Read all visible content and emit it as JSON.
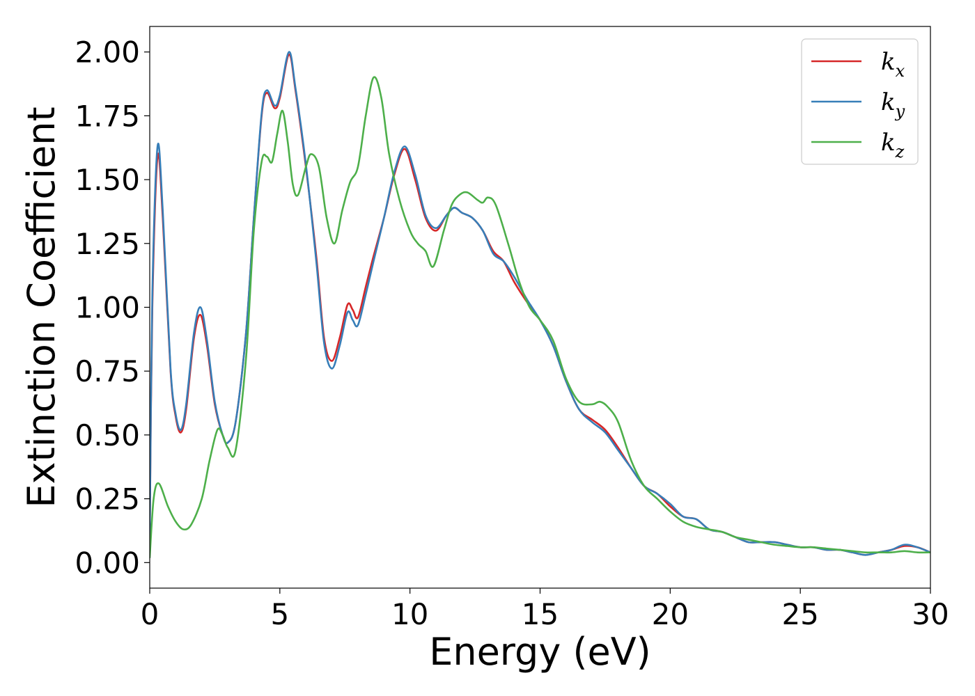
{
  "chart_data": {
    "type": "line",
    "title": "",
    "xlabel": "Energy (eV)",
    "ylabel": "Extinction Coefficient",
    "xlim": [
      0,
      30
    ],
    "ylim": [
      -0.1,
      2.1
    ],
    "xticks": [
      0,
      5,
      10,
      15,
      20,
      25,
      30
    ],
    "xtick_labels": [
      "0",
      "5",
      "10",
      "15",
      "20",
      "25",
      "30"
    ],
    "yticks": [
      0,
      0.25,
      0.5,
      0.75,
      1.0,
      1.25,
      1.5,
      1.75,
      2.0
    ],
    "ytick_labels": [
      "0.00",
      "0.25",
      "0.50",
      "0.75",
      "1.00",
      "1.25",
      "1.50",
      "1.75",
      "2.00"
    ],
    "grid": false,
    "legend_position": "top-right",
    "series": [
      {
        "name": "k",
        "subscript": "x",
        "color": "#d62728",
        "points": [
          [
            0,
            0.1
          ],
          [
            0.1,
            1.0
          ],
          [
            0.3,
            1.59
          ],
          [
            0.5,
            1.35
          ],
          [
            0.8,
            0.75
          ],
          [
            1.0,
            0.57
          ],
          [
            1.2,
            0.51
          ],
          [
            1.4,
            0.6
          ],
          [
            1.7,
            0.88
          ],
          [
            1.95,
            0.97
          ],
          [
            2.2,
            0.85
          ],
          [
            2.5,
            0.62
          ],
          [
            2.8,
            0.5
          ],
          [
            3.0,
            0.47
          ],
          [
            3.3,
            0.55
          ],
          [
            3.7,
            0.9
          ],
          [
            4.0,
            1.35
          ],
          [
            4.3,
            1.75
          ],
          [
            4.5,
            1.84
          ],
          [
            4.8,
            1.78
          ],
          [
            5.0,
            1.82
          ],
          [
            5.35,
            1.99
          ],
          [
            5.6,
            1.85
          ],
          [
            6.0,
            1.55
          ],
          [
            6.4,
            1.2
          ],
          [
            6.7,
            0.88
          ],
          [
            7.0,
            0.79
          ],
          [
            7.3,
            0.88
          ],
          [
            7.6,
            1.01
          ],
          [
            7.8,
            0.99
          ],
          [
            8.0,
            0.96
          ],
          [
            8.3,
            1.08
          ],
          [
            8.6,
            1.2
          ],
          [
            9.0,
            1.35
          ],
          [
            9.4,
            1.52
          ],
          [
            9.8,
            1.62
          ],
          [
            10.2,
            1.5
          ],
          [
            10.6,
            1.35
          ],
          [
            11.0,
            1.3
          ],
          [
            11.4,
            1.36
          ],
          [
            11.7,
            1.39
          ],
          [
            12.0,
            1.37
          ],
          [
            12.4,
            1.35
          ],
          [
            12.8,
            1.3
          ],
          [
            13.2,
            1.22
          ],
          [
            13.6,
            1.18
          ],
          [
            14.0,
            1.1
          ],
          [
            14.5,
            1.02
          ],
          [
            15.0,
            0.95
          ],
          [
            15.5,
            0.85
          ],
          [
            16.0,
            0.71
          ],
          [
            16.5,
            0.6
          ],
          [
            17.0,
            0.56
          ],
          [
            17.5,
            0.52
          ],
          [
            18.0,
            0.45
          ],
          [
            18.5,
            0.37
          ],
          [
            19.0,
            0.3
          ],
          [
            19.5,
            0.27
          ],
          [
            20.0,
            0.22
          ],
          [
            20.5,
            0.18
          ],
          [
            21.0,
            0.17
          ],
          [
            21.5,
            0.13
          ],
          [
            22.0,
            0.12
          ],
          [
            22.5,
            0.1
          ],
          [
            23.0,
            0.08
          ],
          [
            23.5,
            0.08
          ],
          [
            24.0,
            0.08
          ],
          [
            24.5,
            0.07
          ],
          [
            25.0,
            0.06
          ],
          [
            25.5,
            0.06
          ],
          [
            26.0,
            0.05
          ],
          [
            26.5,
            0.05
          ],
          [
            27.0,
            0.04
          ],
          [
            27.5,
            0.03
          ],
          [
            28.0,
            0.04
          ],
          [
            28.5,
            0.05
          ],
          [
            29.0,
            0.065
          ],
          [
            29.5,
            0.06
          ],
          [
            30.0,
            0.04
          ]
        ]
      },
      {
        "name": "k",
        "subscript": "y",
        "color": "#377eb8",
        "points": [
          [
            0,
            0.1
          ],
          [
            0.1,
            1.05
          ],
          [
            0.3,
            1.63
          ],
          [
            0.5,
            1.38
          ],
          [
            0.8,
            0.76
          ],
          [
            1.0,
            0.58
          ],
          [
            1.2,
            0.52
          ],
          [
            1.4,
            0.62
          ],
          [
            1.7,
            0.9
          ],
          [
            1.95,
            1.0
          ],
          [
            2.2,
            0.87
          ],
          [
            2.5,
            0.63
          ],
          [
            2.8,
            0.5
          ],
          [
            3.0,
            0.47
          ],
          [
            3.3,
            0.55
          ],
          [
            3.7,
            0.9
          ],
          [
            4.0,
            1.35
          ],
          [
            4.3,
            1.76
          ],
          [
            4.5,
            1.85
          ],
          [
            4.8,
            1.79
          ],
          [
            5.0,
            1.83
          ],
          [
            5.35,
            2.0
          ],
          [
            5.6,
            1.86
          ],
          [
            6.0,
            1.56
          ],
          [
            6.4,
            1.18
          ],
          [
            6.7,
            0.86
          ],
          [
            7.0,
            0.76
          ],
          [
            7.3,
            0.85
          ],
          [
            7.6,
            0.98
          ],
          [
            7.8,
            0.95
          ],
          [
            8.0,
            0.93
          ],
          [
            8.3,
            1.05
          ],
          [
            8.6,
            1.18
          ],
          [
            9.0,
            1.35
          ],
          [
            9.4,
            1.53
          ],
          [
            9.8,
            1.63
          ],
          [
            10.2,
            1.52
          ],
          [
            10.6,
            1.36
          ],
          [
            11.0,
            1.31
          ],
          [
            11.4,
            1.36
          ],
          [
            11.7,
            1.39
          ],
          [
            12.0,
            1.37
          ],
          [
            12.4,
            1.35
          ],
          [
            12.8,
            1.3
          ],
          [
            13.2,
            1.21
          ],
          [
            13.6,
            1.18
          ],
          [
            14.0,
            1.12
          ],
          [
            14.5,
            1.03
          ],
          [
            15.0,
            0.95
          ],
          [
            15.5,
            0.85
          ],
          [
            16.0,
            0.71
          ],
          [
            16.5,
            0.6
          ],
          [
            17.0,
            0.55
          ],
          [
            17.5,
            0.51
          ],
          [
            18.0,
            0.44
          ],
          [
            18.5,
            0.37
          ],
          [
            19.0,
            0.3
          ],
          [
            19.5,
            0.27
          ],
          [
            20.0,
            0.23
          ],
          [
            20.5,
            0.18
          ],
          [
            21.0,
            0.17
          ],
          [
            21.5,
            0.13
          ],
          [
            22.0,
            0.12
          ],
          [
            22.5,
            0.1
          ],
          [
            23.0,
            0.08
          ],
          [
            23.5,
            0.08
          ],
          [
            24.0,
            0.08
          ],
          [
            24.5,
            0.07
          ],
          [
            25.0,
            0.06
          ],
          [
            25.5,
            0.06
          ],
          [
            26.0,
            0.05
          ],
          [
            26.5,
            0.05
          ],
          [
            27.0,
            0.04
          ],
          [
            27.5,
            0.03
          ],
          [
            28.0,
            0.04
          ],
          [
            28.5,
            0.05
          ],
          [
            29.0,
            0.07
          ],
          [
            29.5,
            0.06
          ],
          [
            30.0,
            0.04
          ]
        ]
      },
      {
        "name": "k",
        "subscript": "z",
        "color": "#4daf4a",
        "points": [
          [
            0,
            0.02
          ],
          [
            0.15,
            0.25
          ],
          [
            0.35,
            0.31
          ],
          [
            0.7,
            0.22
          ],
          [
            1.0,
            0.16
          ],
          [
            1.3,
            0.13
          ],
          [
            1.6,
            0.15
          ],
          [
            2.0,
            0.25
          ],
          [
            2.3,
            0.4
          ],
          [
            2.6,
            0.52
          ],
          [
            2.8,
            0.5
          ],
          [
            3.0,
            0.45
          ],
          [
            3.3,
            0.44
          ],
          [
            3.7,
            0.8
          ],
          [
            4.0,
            1.3
          ],
          [
            4.3,
            1.57
          ],
          [
            4.5,
            1.59
          ],
          [
            4.7,
            1.57
          ],
          [
            4.9,
            1.68
          ],
          [
            5.1,
            1.77
          ],
          [
            5.3,
            1.65
          ],
          [
            5.5,
            1.48
          ],
          [
            5.7,
            1.44
          ],
          [
            6.0,
            1.55
          ],
          [
            6.2,
            1.6
          ],
          [
            6.5,
            1.55
          ],
          [
            6.8,
            1.35
          ],
          [
            7.1,
            1.25
          ],
          [
            7.4,
            1.38
          ],
          [
            7.7,
            1.49
          ],
          [
            8.0,
            1.55
          ],
          [
            8.3,
            1.75
          ],
          [
            8.6,
            1.9
          ],
          [
            8.9,
            1.82
          ],
          [
            9.2,
            1.6
          ],
          [
            9.6,
            1.42
          ],
          [
            10.0,
            1.3
          ],
          [
            10.3,
            1.25
          ],
          [
            10.6,
            1.22
          ],
          [
            10.9,
            1.16
          ],
          [
            11.3,
            1.3
          ],
          [
            11.6,
            1.4
          ],
          [
            11.9,
            1.44
          ],
          [
            12.2,
            1.45
          ],
          [
            12.6,
            1.42
          ],
          [
            12.8,
            1.41
          ],
          [
            13.0,
            1.43
          ],
          [
            13.3,
            1.4
          ],
          [
            13.8,
            1.24
          ],
          [
            14.2,
            1.1
          ],
          [
            14.6,
            1.0
          ],
          [
            15.0,
            0.95
          ],
          [
            15.5,
            0.87
          ],
          [
            16.0,
            0.72
          ],
          [
            16.5,
            0.63
          ],
          [
            17.0,
            0.62
          ],
          [
            17.3,
            0.63
          ],
          [
            17.6,
            0.61
          ],
          [
            18.0,
            0.55
          ],
          [
            18.5,
            0.4
          ],
          [
            19.0,
            0.3
          ],
          [
            19.5,
            0.25
          ],
          [
            20.0,
            0.2
          ],
          [
            20.5,
            0.16
          ],
          [
            21.0,
            0.14
          ],
          [
            21.5,
            0.13
          ],
          [
            22.0,
            0.12
          ],
          [
            22.5,
            0.1
          ],
          [
            23.0,
            0.09
          ],
          [
            23.5,
            0.08
          ],
          [
            24.0,
            0.07
          ],
          [
            24.5,
            0.065
          ],
          [
            25.0,
            0.06
          ],
          [
            25.5,
            0.06
          ],
          [
            26.0,
            0.055
          ],
          [
            26.5,
            0.05
          ],
          [
            27.0,
            0.045
          ],
          [
            27.5,
            0.04
          ],
          [
            28.0,
            0.04
          ],
          [
            28.5,
            0.04
          ],
          [
            29.0,
            0.045
          ],
          [
            29.5,
            0.04
          ],
          [
            30.0,
            0.04
          ]
        ]
      }
    ]
  }
}
